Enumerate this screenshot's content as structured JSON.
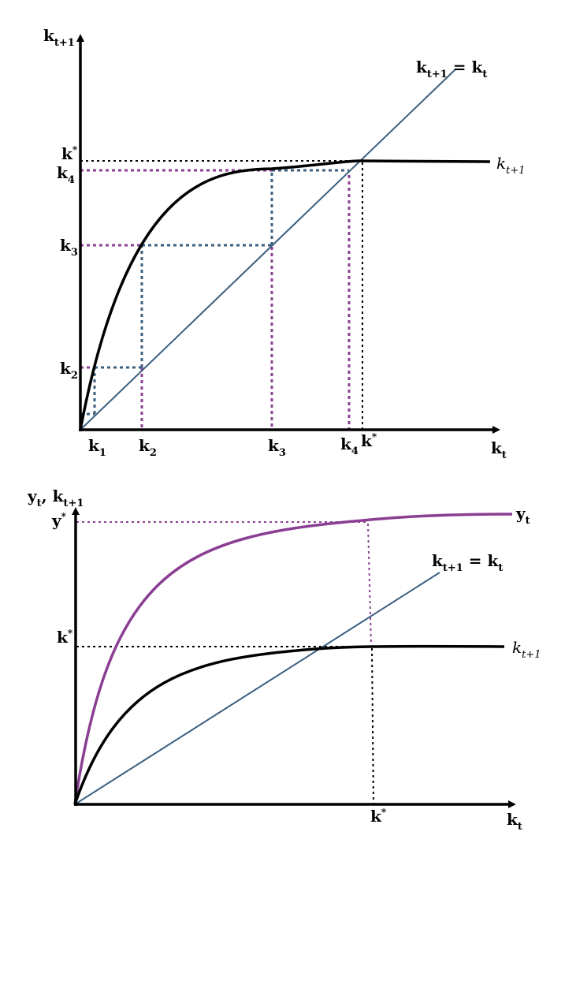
{
  "diagram_top": {
    "y_axis_label": {
      "base": "k",
      "sub": "t+1"
    },
    "x_axis_label": {
      "base": "k",
      "sub": "t"
    },
    "line45_label": {
      "lhs_base": "k",
      "lhs_sub": "t+1",
      "eq": " = ",
      "rhs_base": "k",
      "rhs_sub": "t"
    },
    "curve_label": {
      "base": "k",
      "sub": "t+1"
    },
    "y_ticks": [
      {
        "base": "k",
        "sup": "*"
      },
      {
        "base": "k",
        "sub": "4"
      },
      {
        "base": "k",
        "sub": "3"
      },
      {
        "base": "k",
        "sub": "2"
      }
    ],
    "x_ticks": [
      {
        "base": "k",
        "sub": "1"
      },
      {
        "base": "k",
        "sub": "2"
      },
      {
        "base": "k",
        "sub": "3"
      },
      {
        "base": "k",
        "sub": "4"
      },
      {
        "base": "k",
        "sup": "*"
      }
    ]
  },
  "diagram_bottom": {
    "y_axis_label": {
      "a_base": "y",
      "a_sub": "t",
      "sep": ", ",
      "b_base": "k",
      "b_sub": "t+1"
    },
    "x_axis_label": {
      "base": "k",
      "sub": "t"
    },
    "line45_label": {
      "lhs_base": "k",
      "lhs_sub": "t+1",
      "eq": " = ",
      "rhs_base": "k",
      "rhs_sub": "t"
    },
    "y_curve_label": {
      "base": "y",
      "sub": "t"
    },
    "k_curve_label": {
      "base": "k",
      "sub": "t+1"
    },
    "y_ticks": [
      {
        "base": "y",
        "sup": "*"
      },
      {
        "base": "k",
        "sup": "*"
      }
    ],
    "x_ticks": [
      {
        "base": "k",
        "sup": "*"
      }
    ]
  },
  "colors": {
    "curve": "#000000",
    "output_curve": "#8b3f93",
    "line45": "#3b5f7f",
    "guide_black": "#000000",
    "guide_purple": "#8b3f93",
    "guide_blue": "#3b5f7f"
  }
}
